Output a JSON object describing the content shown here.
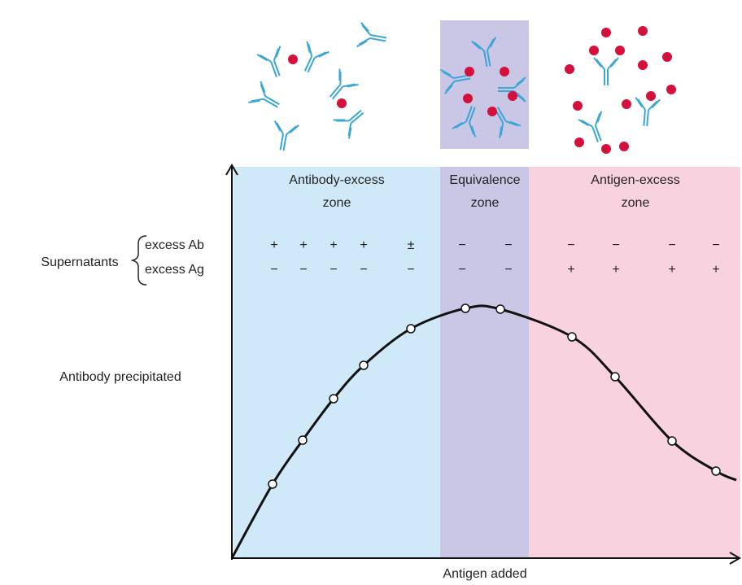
{
  "zones": [
    {
      "label": [
        "Antibody-excess",
        "zone"
      ]
    },
    {
      "label": [
        "Equivalence",
        "zone"
      ]
    },
    {
      "label": [
        "Antigen-excess",
        "zone"
      ]
    }
  ],
  "supernatants": {
    "label": "Supernatants",
    "rows": [
      {
        "label": "excess Ab",
        "signs": [
          "+",
          "+",
          "+",
          "+",
          "±",
          "−",
          "−",
          "−",
          "−",
          "−",
          "−"
        ]
      },
      {
        "label": "excess Ag",
        "signs": [
          "−",
          "−",
          "−",
          "−",
          "−",
          "−",
          "−",
          "+",
          "+",
          "+",
          "+"
        ]
      }
    ]
  },
  "y_axis_label": "Antibody precipitated",
  "x_axis_label": "Antigen added"
}
